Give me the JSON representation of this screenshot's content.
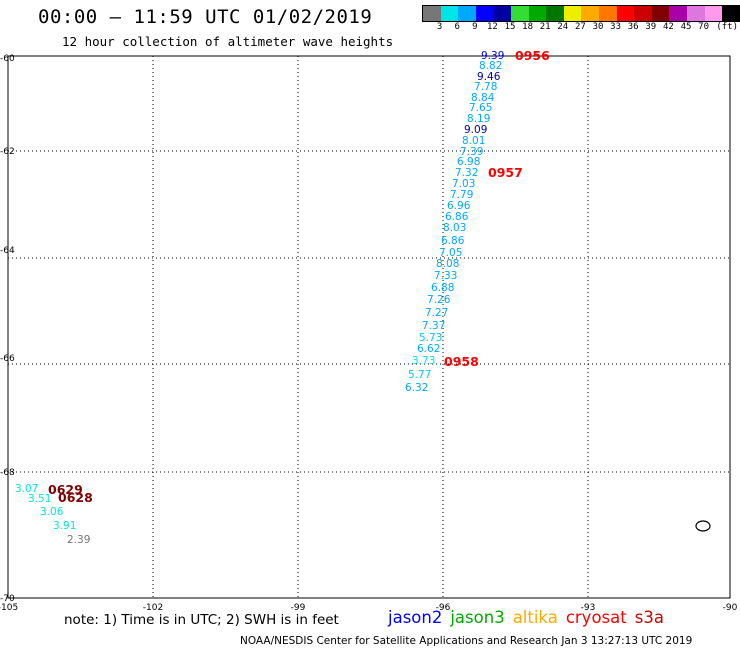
{
  "header": {
    "title": "00:00 — 11:59 UTC 01/02/2019",
    "subtitle": "12 hour collection of altimeter wave heights"
  },
  "colorbar": {
    "swatches": [
      "#777777",
      "#00e6e6",
      "#00a8ff",
      "#0000ff",
      "#0000a0",
      "#33dd33",
      "#00aa00",
      "#007700",
      "#eeee00",
      "#ffaa00",
      "#ff7700",
      "#ff0000",
      "#cc0000",
      "#800000",
      "#aa00aa",
      "#dd77dd",
      "#ff99ee",
      "#000000"
    ],
    "labels": [
      "3",
      "6",
      "9",
      "12",
      "15",
      "18",
      "21",
      "24",
      "27",
      "30",
      "33",
      "36",
      "39",
      "42",
      "45",
      "70"
    ],
    "unit": "(ft)"
  },
  "axes": {
    "lat_labels": [
      "-60",
      "-62",
      "-64",
      "-66",
      "-68",
      "-70"
    ],
    "lon_labels": [
      "-105",
      "-102",
      "-99",
      "-96",
      "-93",
      "-90"
    ]
  },
  "waves": [
    {
      "value": "9.39",
      "color": "#0000ff"
    },
    {
      "value": "8.82",
      "color": "#00a8ff"
    },
    {
      "value": "9.46",
      "color": "#0000a0"
    },
    {
      "value": "7.78",
      "color": "#00a8ff"
    },
    {
      "value": "8.84",
      "color": "#00a8ff"
    },
    {
      "value": "7.65",
      "color": "#00a8ff"
    },
    {
      "value": "8.19",
      "color": "#00a8ff"
    },
    {
      "value": "9.09",
      "color": "#0000a0"
    },
    {
      "value": "8.01",
      "color": "#00a8ff"
    },
    {
      "value": "7.39",
      "color": "#00a8ff"
    },
    {
      "value": "6.98",
      "color": "#00a8ff"
    },
    {
      "value": "7.32",
      "color": "#00a8ff"
    },
    {
      "value": "7.03",
      "color": "#00a8ff"
    },
    {
      "value": "7.79",
      "color": "#00a8ff"
    },
    {
      "value": "6.96",
      "color": "#00a8ff"
    },
    {
      "value": "6.86",
      "color": "#00a8ff"
    },
    {
      "value": "8.03",
      "color": "#00a8ff"
    },
    {
      "value": "6.86",
      "color": "#00a8ff"
    },
    {
      "value": "7.05",
      "color": "#00a8ff"
    },
    {
      "value": "8.08",
      "color": "#00a8ff"
    },
    {
      "value": "7.33",
      "color": "#00a8ff"
    },
    {
      "value": "6.88",
      "color": "#00a8ff"
    },
    {
      "value": "7.26",
      "color": "#00a8ff"
    },
    {
      "value": "7.27",
      "color": "#00a8ff"
    },
    {
      "value": "7.37",
      "color": "#00a8ff"
    },
    {
      "value": "5.73",
      "color": "#00c8ee"
    },
    {
      "value": "6.62",
      "color": "#00a8ff"
    },
    {
      "value": "3.73",
      "color": "#00e6e6"
    },
    {
      "value": "5.77",
      "color": "#00c8ee"
    },
    {
      "value": "6.32",
      "color": "#00a8ff"
    },
    {
      "value": "3.07",
      "color": "#00e6e6"
    },
    {
      "value": "3.51",
      "color": "#00e6e6"
    },
    {
      "value": "3.06",
      "color": "#00e6e6"
    },
    {
      "value": "3.91",
      "color": "#00e6e6"
    },
    {
      "value": "2.39",
      "color": "#777777"
    }
  ],
  "passes": [
    {
      "label": "0956",
      "color": "#ff0000"
    },
    {
      "label": "0957",
      "color": "#ff0000"
    },
    {
      "label": "0958",
      "color": "#ff0000"
    },
    {
      "label": "0629",
      "color": "#800000"
    },
    {
      "label": "0628",
      "color": "#800000"
    }
  ],
  "note": "note: 1) Time is in UTC; 2) SWH is in feet",
  "legend": [
    {
      "name": "jason2",
      "color": "#0000ff"
    },
    {
      "name": "jason3",
      "color": "#00aa00"
    },
    {
      "name": "altika",
      "color": "#ffaa00"
    },
    {
      "name": "cryosat",
      "color": "#ff0000"
    },
    {
      "name": "s3a",
      "color": "#cc0000"
    }
  ],
  "footer": "NOAA/NESDIS Center for Satellite Applications and Research   Jan  3 13:27:13 UTC 2019"
}
